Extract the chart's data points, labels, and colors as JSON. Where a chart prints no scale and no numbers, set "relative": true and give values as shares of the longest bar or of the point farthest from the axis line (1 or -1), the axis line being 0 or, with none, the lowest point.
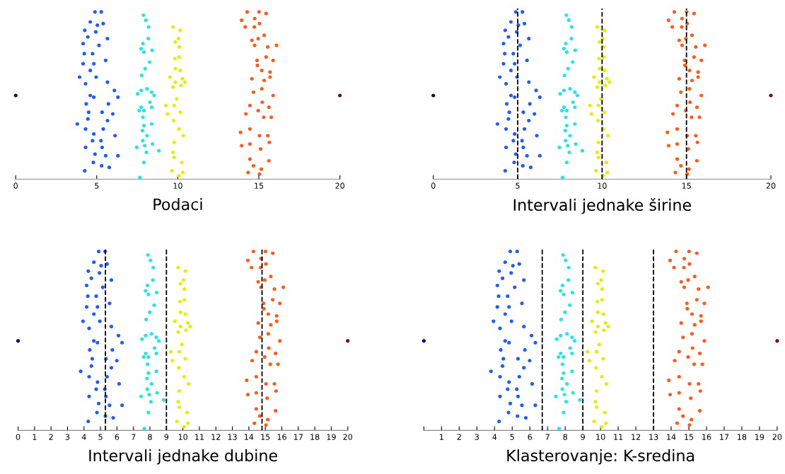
{
  "chart_data": [
    {
      "type": "scatter",
      "xlabel": "Podaci",
      "relative": true,
      "xlim": [
        0,
        20
      ],
      "xticks": [
        0,
        5,
        10,
        15,
        20
      ],
      "tick_labels": "x",
      "marker": "circle",
      "grid": false,
      "series": [
        {
          "color": "#000080",
          "x": [
            0
          ],
          "values": [
            0.5
          ]
        },
        {
          "color": "#800000",
          "x": [
            20
          ],
          "values": [
            0.5
          ]
        },
        {
          "color": "#1f5cff",
          "x": [
            4.89,
            5.28,
            4.6,
            5.04,
            4.26,
            4.94,
            5.4,
            4.45,
            5.66,
            4.16,
            5.14,
            4.23,
            4.74,
            5.55,
            4.16,
            4.82,
            4.6,
            3.94,
            4.96,
            5.66,
            4.31,
            6.09,
            6.31,
            4.6,
            4.82,
            4.35,
            5.72,
            4.5,
            5.33,
            5.99,
            3.8,
            4.45,
            5.66,
            4.31,
            5.4,
            4.82,
            6.13,
            4.74,
            5.26,
            4.31,
            5.33,
            4.89,
            5.55,
            6.31,
            4.79,
            5.3,
            5.77,
            4.26
          ],
          "values": [
            1.0,
            1.0,
            0.94,
            0.92,
            0.89,
            0.88,
            0.93,
            0.85,
            0.84,
            0.81,
            0.8,
            0.75,
            0.75,
            0.71,
            0.69,
            0.69,
            0.65,
            0.61,
            0.61,
            0.58,
            0.57,
            0.53,
            0.49,
            0.5,
            0.49,
            0.45,
            0.45,
            0.4,
            0.4,
            0.39,
            0.33,
            0.36,
            0.35,
            0.3,
            0.3,
            0.27,
            0.26,
            0.23,
            0.23,
            0.19,
            0.19,
            0.15,
            0.14,
            0.14,
            0.1,
            0.08,
            0.07,
            0.05
          ]
        },
        {
          "color": "#22e6e6",
          "x": [
            7.88,
            8.03,
            8.2,
            8.18,
            7.85,
            7.74,
            8.41,
            7.91,
            8.26,
            7.99,
            7.77,
            7.74,
            8.1,
            8.39,
            7.52,
            8.54,
            8.28,
            7.74,
            8.39,
            7.62,
            7.91,
            7.85,
            7.91,
            8.39,
            7.82,
            8.1,
            7.84,
            7.47,
            7.96,
            8.44,
            8.83,
            8.06,
            7.91,
            7.66
          ],
          "values": [
            0.98,
            0.95,
            0.91,
            0.84,
            0.81,
            0.78,
            0.77,
            0.76,
            0.7,
            0.66,
            0.62,
            0.53,
            0.54,
            0.52,
            0.51,
            0.5,
            0.46,
            0.43,
            0.43,
            0.41,
            0.41,
            0.37,
            0.32,
            0.33,
            0.29,
            0.26,
            0.23,
            0.19,
            0.2,
            0.21,
            0.17,
            0.16,
            0.1,
            0.01
          ]
        },
        {
          "color": "#e6ee00",
          "x": [
            9.71,
            10.15,
            10.04,
            9.85,
            10.09,
            9.82,
            10.09,
            9.85,
            10.15,
            9.52,
            10.29,
            10.44,
            9.85,
            10.19,
            9.71,
            9.93,
            9.78,
            9.27,
            10.15,
            9.37,
            9.75,
            10.07,
            10.34,
            9.78,
            9.71,
            9.78,
            10.25,
            9.64,
            10.31,
            10.07
          ],
          "values": [
            0.91,
            0.89,
            0.84,
            0.82,
            0.79,
            0.72,
            0.73,
            0.66,
            0.65,
            0.61,
            0.6,
            0.58,
            0.58,
            0.56,
            0.55,
            0.48,
            0.44,
            0.44,
            0.4,
            0.39,
            0.35,
            0.3,
            0.26,
            0.22,
            0.16,
            0.13,
            0.1,
            0.05,
            0.04,
            0.02
          ]
        },
        {
          "color": "#ff5a1a",
          "x": [
            14.28,
            15.01,
            15.45,
            13.94,
            14.74,
            15.04,
            14.16,
            14.72,
            15.33,
            14.57,
            14.96,
            14.74,
            16.09,
            15.55,
            15.45,
            15.88,
            14.89,
            14.91,
            15.18,
            15.69,
            14.57,
            15.33,
            15.69,
            14.67,
            15.18,
            15.88,
            15.21,
            14.45,
            15.62,
            14.2,
            14.96,
            15.3,
            15.77,
            14.45,
            13.87,
            15.04,
            15.55,
            13.94,
            14.45,
            15.11,
            15.65,
            14.45,
            15.62,
            14.67,
            15.15,
            14.34,
            15.04
          ],
          "values": [
            1.0,
            1.0,
            0.99,
            0.95,
            0.96,
            0.93,
            0.91,
            0.91,
            0.86,
            0.83,
            0.84,
            0.8,
            0.8,
            0.79,
            0.73,
            0.71,
            0.71,
            0.68,
            0.65,
            0.64,
            0.6,
            0.59,
            0.61,
            0.52,
            0.54,
            0.5,
            0.46,
            0.44,
            0.43,
            0.39,
            0.41,
            0.37,
            0.37,
            0.3,
            0.28,
            0.26,
            0.26,
            0.2,
            0.21,
            0.18,
            0.22,
            0.12,
            0.11,
            0.08,
            0.06,
            0.04,
            0.03
          ]
        }
      ]
    },
    {
      "type": "scatter",
      "xlabel": "Intervali jednake širine",
      "relative": true,
      "xlim": [
        0,
        20
      ],
      "xticks": [
        0,
        5,
        10,
        15,
        20
      ],
      "tick_labels": "x",
      "marker": "circle",
      "grid": false,
      "ref_lines": [
        {
          "axis": "x",
          "value": 5,
          "color": "#000000",
          "line_style": "dashed"
        },
        {
          "axis": "x",
          "value": 10,
          "color": "#000000",
          "line_style": "dashed"
        },
        {
          "axis": "x",
          "value": 15,
          "color": "#000000",
          "line_style": "dashed"
        }
      ],
      "series": [
        {
          "color": "#000080",
          "x": [
            0
          ],
          "values": [
            0.5
          ]
        },
        {
          "color": "#800000",
          "x": [
            20
          ],
          "values": [
            0.5
          ]
        },
        {
          "color": "#1f5cff",
          "x": [
            4.89,
            5.28,
            4.6,
            5.04,
            4.26,
            4.94,
            5.4,
            4.45,
            5.66,
            4.16,
            5.14,
            4.23,
            4.74,
            5.55,
            4.16,
            4.82,
            4.6,
            3.94,
            4.96,
            5.66,
            4.31,
            6.09,
            6.31,
            4.6,
            4.82,
            4.35,
            5.72,
            4.5,
            5.33,
            5.99,
            3.8,
            4.45,
            5.66,
            4.31,
            5.4,
            4.82,
            6.13,
            4.74,
            5.26,
            4.31,
            5.33,
            4.89,
            5.55,
            6.31,
            4.79,
            5.3,
            5.77,
            4.26
          ],
          "values": [
            1.0,
            1.0,
            0.94,
            0.92,
            0.89,
            0.88,
            0.93,
            0.85,
            0.84,
            0.81,
            0.8,
            0.75,
            0.75,
            0.71,
            0.69,
            0.69,
            0.65,
            0.61,
            0.61,
            0.58,
            0.57,
            0.53,
            0.49,
            0.5,
            0.49,
            0.45,
            0.45,
            0.4,
            0.4,
            0.39,
            0.33,
            0.36,
            0.35,
            0.3,
            0.3,
            0.27,
            0.26,
            0.23,
            0.23,
            0.19,
            0.19,
            0.15,
            0.14,
            0.14,
            0.1,
            0.08,
            0.07,
            0.05
          ]
        },
        {
          "color": "#22e6e6",
          "x": [
            7.88,
            8.03,
            8.2,
            8.18,
            7.85,
            7.74,
            8.41,
            7.91,
            8.26,
            7.99,
            7.77,
            7.74,
            8.1,
            8.39,
            7.52,
            8.54,
            8.28,
            7.74,
            8.39,
            7.62,
            7.91,
            7.85,
            7.91,
            8.39,
            7.82,
            8.1,
            7.84,
            7.47,
            7.96,
            8.44,
            8.83,
            8.06,
            7.91,
            7.66
          ],
          "values": [
            0.98,
            0.95,
            0.91,
            0.84,
            0.81,
            0.78,
            0.77,
            0.76,
            0.7,
            0.66,
            0.62,
            0.53,
            0.54,
            0.52,
            0.51,
            0.5,
            0.46,
            0.43,
            0.43,
            0.41,
            0.41,
            0.37,
            0.32,
            0.33,
            0.29,
            0.26,
            0.23,
            0.19,
            0.2,
            0.21,
            0.17,
            0.16,
            0.1,
            0.01
          ]
        },
        {
          "color": "#e6ee00",
          "x": [
            9.71,
            10.15,
            10.04,
            9.85,
            10.09,
            9.82,
            10.09,
            9.85,
            10.15,
            9.52,
            10.29,
            10.44,
            9.85,
            10.19,
            9.71,
            9.93,
            9.78,
            9.27,
            10.15,
            9.37,
            9.75,
            10.07,
            10.34,
            9.78,
            9.71,
            9.78,
            10.25,
            9.64,
            10.31,
            10.07
          ],
          "values": [
            0.91,
            0.89,
            0.84,
            0.82,
            0.79,
            0.72,
            0.73,
            0.66,
            0.65,
            0.61,
            0.6,
            0.58,
            0.58,
            0.56,
            0.55,
            0.48,
            0.44,
            0.44,
            0.4,
            0.39,
            0.35,
            0.3,
            0.26,
            0.22,
            0.16,
            0.13,
            0.1,
            0.05,
            0.04,
            0.02
          ]
        },
        {
          "color": "#ff5a1a",
          "x": [
            14.28,
            15.01,
            15.45,
            13.94,
            14.74,
            15.04,
            14.16,
            14.72,
            15.33,
            14.57,
            14.96,
            14.74,
            16.09,
            15.55,
            15.45,
            15.88,
            14.89,
            14.91,
            15.18,
            15.69,
            14.57,
            15.33,
            15.69,
            14.67,
            15.18,
            15.88,
            15.21,
            14.45,
            15.62,
            14.2,
            14.96,
            15.3,
            15.77,
            14.45,
            13.87,
            15.04,
            15.55,
            13.94,
            14.45,
            15.11,
            15.65,
            14.45,
            15.62,
            14.67,
            15.15,
            14.34,
            15.04
          ],
          "values": [
            1.0,
            1.0,
            0.99,
            0.95,
            0.96,
            0.93,
            0.91,
            0.91,
            0.86,
            0.83,
            0.84,
            0.8,
            0.8,
            0.79,
            0.73,
            0.71,
            0.71,
            0.68,
            0.65,
            0.64,
            0.6,
            0.59,
            0.61,
            0.52,
            0.54,
            0.5,
            0.46,
            0.44,
            0.43,
            0.39,
            0.41,
            0.37,
            0.37,
            0.3,
            0.28,
            0.26,
            0.26,
            0.2,
            0.21,
            0.18,
            0.22,
            0.12,
            0.11,
            0.08,
            0.06,
            0.04,
            0.03
          ]
        }
      ]
    },
    {
      "type": "scatter",
      "xlabel": "Intervali jednake dubine",
      "relative": true,
      "xlim": [
        0,
        20
      ],
      "xticks": [
        0,
        1,
        2,
        3,
        4,
        5,
        6,
        7,
        8,
        9,
        10,
        11,
        12,
        13,
        14,
        15,
        16,
        17,
        18,
        19,
        20
      ],
      "tick_labels": "x",
      "marker": "circle",
      "grid": false,
      "ref_lines": [
        {
          "axis": "x",
          "value": 5.3,
          "color": "#000000",
          "line_style": "dashed"
        },
        {
          "axis": "x",
          "value": 9.0,
          "color": "#000000",
          "line_style": "dashed"
        },
        {
          "axis": "x",
          "value": 14.8,
          "color": "#000000",
          "line_style": "dashed"
        }
      ],
      "series": [
        {
          "color": "#000080",
          "x": [
            0
          ],
          "values": [
            0.5
          ]
        },
        {
          "color": "#800000",
          "x": [
            20
          ],
          "values": [
            0.5
          ]
        },
        {
          "color": "#1f5cff",
          "x": [
            4.89,
            5.28,
            4.6,
            5.04,
            4.26,
            4.94,
            5.4,
            4.45,
            5.66,
            4.16,
            5.14,
            4.23,
            4.74,
            5.55,
            4.16,
            4.82,
            4.6,
            3.94,
            4.96,
            5.66,
            4.31,
            6.09,
            6.31,
            4.6,
            4.82,
            4.35,
            5.72,
            4.5,
            5.33,
            5.99,
            3.8,
            4.45,
            5.66,
            4.31,
            5.4,
            4.82,
            6.13,
            4.74,
            5.26,
            4.31,
            5.33,
            4.89,
            5.55,
            6.31,
            4.79,
            5.3,
            5.77,
            4.26
          ],
          "values": [
            1.0,
            1.0,
            0.94,
            0.92,
            0.89,
            0.88,
            0.93,
            0.85,
            0.84,
            0.81,
            0.8,
            0.75,
            0.75,
            0.71,
            0.69,
            0.69,
            0.65,
            0.61,
            0.61,
            0.58,
            0.57,
            0.53,
            0.49,
            0.5,
            0.49,
            0.45,
            0.45,
            0.4,
            0.4,
            0.39,
            0.33,
            0.36,
            0.35,
            0.3,
            0.3,
            0.27,
            0.26,
            0.23,
            0.23,
            0.19,
            0.19,
            0.15,
            0.14,
            0.14,
            0.1,
            0.08,
            0.07,
            0.05
          ]
        },
        {
          "color": "#22e6e6",
          "x": [
            7.88,
            8.03,
            8.2,
            8.18,
            7.85,
            7.74,
            8.41,
            7.91,
            8.26,
            7.99,
            7.77,
            7.74,
            8.1,
            8.39,
            7.52,
            8.54,
            8.28,
            7.74,
            8.39,
            7.62,
            7.91,
            7.85,
            7.91,
            8.39,
            7.82,
            8.1,
            7.84,
            7.47,
            7.96,
            8.44,
            8.83,
            8.06,
            7.91,
            7.66
          ],
          "values": [
            0.98,
            0.95,
            0.91,
            0.84,
            0.81,
            0.78,
            0.77,
            0.76,
            0.7,
            0.66,
            0.62,
            0.53,
            0.54,
            0.52,
            0.51,
            0.5,
            0.46,
            0.43,
            0.43,
            0.41,
            0.41,
            0.37,
            0.32,
            0.33,
            0.29,
            0.26,
            0.23,
            0.19,
            0.2,
            0.21,
            0.17,
            0.16,
            0.1,
            0.01
          ]
        },
        {
          "color": "#e6ee00",
          "x": [
            9.71,
            10.15,
            10.04,
            9.85,
            10.09,
            9.82,
            10.09,
            9.85,
            10.15,
            9.52,
            10.29,
            10.44,
            9.85,
            10.19,
            9.71,
            9.93,
            9.78,
            9.27,
            10.15,
            9.37,
            9.75,
            10.07,
            10.34,
            9.78,
            9.71,
            9.78,
            10.25,
            9.64,
            10.31,
            10.07
          ],
          "values": [
            0.91,
            0.89,
            0.84,
            0.82,
            0.79,
            0.72,
            0.73,
            0.66,
            0.65,
            0.61,
            0.6,
            0.58,
            0.58,
            0.56,
            0.55,
            0.48,
            0.44,
            0.44,
            0.4,
            0.39,
            0.35,
            0.3,
            0.26,
            0.22,
            0.16,
            0.13,
            0.1,
            0.05,
            0.04,
            0.02
          ]
        },
        {
          "color": "#ff5a1a",
          "x": [
            14.28,
            15.01,
            15.45,
            13.94,
            14.74,
            15.04,
            14.16,
            14.72,
            15.33,
            14.57,
            14.96,
            14.74,
            16.09,
            15.55,
            15.45,
            15.88,
            14.89,
            14.91,
            15.18,
            15.69,
            14.57,
            15.33,
            15.69,
            14.67,
            15.18,
            15.88,
            15.21,
            14.45,
            15.62,
            14.2,
            14.96,
            15.3,
            15.77,
            14.45,
            13.87,
            15.04,
            15.55,
            13.94,
            14.45,
            15.11,
            15.65,
            14.45,
            15.62,
            14.67,
            15.15,
            14.34,
            15.04
          ],
          "values": [
            1.0,
            1.0,
            0.99,
            0.95,
            0.96,
            0.93,
            0.91,
            0.91,
            0.86,
            0.83,
            0.84,
            0.8,
            0.8,
            0.79,
            0.73,
            0.71,
            0.71,
            0.68,
            0.65,
            0.64,
            0.6,
            0.59,
            0.61,
            0.52,
            0.54,
            0.5,
            0.46,
            0.44,
            0.43,
            0.39,
            0.41,
            0.37,
            0.37,
            0.3,
            0.28,
            0.26,
            0.26,
            0.2,
            0.21,
            0.18,
            0.22,
            0.12,
            0.11,
            0.08,
            0.06,
            0.04,
            0.03
          ]
        }
      ]
    },
    {
      "type": "scatter",
      "xlabel": "Klasterovanje: K-sredina",
      "relative": true,
      "xlim": [
        0,
        20
      ],
      "xticks": [
        {
          "value": 0,
          "label": null
        },
        1,
        2,
        3,
        4,
        5,
        6,
        7,
        8,
        9,
        10,
        11,
        12,
        13,
        14,
        15,
        16,
        17,
        18,
        19,
        20
      ],
      "tick_labels": "x",
      "marker": "circle",
      "grid": false,
      "ref_lines": [
        {
          "axis": "x",
          "value": 6.7,
          "color": "#000000",
          "line_style": "dashed"
        },
        {
          "axis": "x",
          "value": 9.0,
          "color": "#000000",
          "line_style": "dashed"
        },
        {
          "axis": "x",
          "value": 13.0,
          "color": "#000000",
          "line_style": "dashed"
        }
      ],
      "series": [
        {
          "color": "#000080",
          "x": [
            0
          ],
          "values": [
            0.5
          ]
        },
        {
          "color": "#800000",
          "x": [
            20
          ],
          "values": [
            0.5
          ]
        },
        {
          "color": "#1f5cff",
          "x": [
            4.89,
            5.28,
            4.6,
            5.04,
            4.26,
            4.94,
            5.4,
            4.45,
            5.66,
            4.16,
            5.14,
            4.23,
            4.74,
            5.55,
            4.16,
            4.82,
            4.6,
            3.94,
            4.96,
            5.66,
            4.31,
            6.09,
            6.31,
            4.6,
            4.82,
            4.35,
            5.72,
            4.5,
            5.33,
            5.99,
            3.8,
            4.45,
            5.66,
            4.31,
            5.4,
            4.82,
            6.13,
            4.74,
            5.26,
            4.31,
            5.33,
            4.89,
            5.55,
            6.31,
            4.79,
            5.3,
            5.77,
            4.26
          ],
          "values": [
            1.0,
            1.0,
            0.94,
            0.92,
            0.89,
            0.88,
            0.93,
            0.85,
            0.84,
            0.81,
            0.8,
            0.75,
            0.75,
            0.71,
            0.69,
            0.69,
            0.65,
            0.61,
            0.61,
            0.58,
            0.57,
            0.53,
            0.49,
            0.5,
            0.49,
            0.45,
            0.45,
            0.4,
            0.4,
            0.39,
            0.33,
            0.36,
            0.35,
            0.3,
            0.3,
            0.27,
            0.26,
            0.23,
            0.23,
            0.19,
            0.19,
            0.15,
            0.14,
            0.14,
            0.1,
            0.08,
            0.07,
            0.05
          ]
        },
        {
          "color": "#22e6e6",
          "x": [
            7.88,
            8.03,
            8.2,
            8.18,
            7.85,
            7.74,
            8.41,
            7.91,
            8.26,
            7.99,
            7.77,
            7.74,
            8.1,
            8.39,
            7.52,
            8.54,
            8.28,
            7.74,
            8.39,
            7.62,
            7.91,
            7.85,
            7.91,
            8.39,
            7.82,
            8.1,
            7.84,
            7.47,
            7.96,
            8.44,
            8.83,
            8.06,
            7.91,
            7.66
          ],
          "values": [
            0.98,
            0.95,
            0.91,
            0.84,
            0.81,
            0.78,
            0.77,
            0.76,
            0.7,
            0.66,
            0.62,
            0.53,
            0.54,
            0.52,
            0.51,
            0.5,
            0.46,
            0.43,
            0.43,
            0.41,
            0.41,
            0.37,
            0.32,
            0.33,
            0.29,
            0.26,
            0.23,
            0.19,
            0.2,
            0.21,
            0.17,
            0.16,
            0.1,
            0.01
          ]
        },
        {
          "color": "#e6ee00",
          "x": [
            9.71,
            10.15,
            10.04,
            9.85,
            10.09,
            9.82,
            10.09,
            9.85,
            10.15,
            9.52,
            10.29,
            10.44,
            9.85,
            10.19,
            9.71,
            9.93,
            9.78,
            9.27,
            10.15,
            9.37,
            9.75,
            10.07,
            10.34,
            9.78,
            9.71,
            9.78,
            10.25,
            9.64,
            10.31,
            10.07
          ],
          "values": [
            0.91,
            0.89,
            0.84,
            0.82,
            0.79,
            0.72,
            0.73,
            0.66,
            0.65,
            0.61,
            0.6,
            0.58,
            0.58,
            0.56,
            0.55,
            0.48,
            0.44,
            0.44,
            0.4,
            0.39,
            0.35,
            0.3,
            0.26,
            0.22,
            0.16,
            0.13,
            0.1,
            0.05,
            0.04,
            0.02
          ]
        },
        {
          "color": "#ff5a1a",
          "x": [
            14.28,
            15.01,
            15.45,
            13.94,
            14.74,
            15.04,
            14.16,
            14.72,
            15.33,
            14.57,
            14.96,
            14.74,
            16.09,
            15.55,
            15.45,
            15.88,
            14.89,
            14.91,
            15.18,
            15.69,
            14.57,
            15.33,
            15.69,
            14.67,
            15.18,
            15.88,
            15.21,
            14.45,
            15.62,
            14.2,
            14.96,
            15.3,
            15.77,
            14.45,
            13.87,
            15.04,
            15.55,
            13.94,
            14.45,
            15.11,
            15.65,
            14.45,
            15.62,
            14.67,
            15.15,
            14.34,
            15.04
          ],
          "values": [
            1.0,
            1.0,
            0.99,
            0.95,
            0.96,
            0.93,
            0.91,
            0.91,
            0.86,
            0.83,
            0.84,
            0.8,
            0.8,
            0.79,
            0.73,
            0.71,
            0.71,
            0.68,
            0.65,
            0.64,
            0.6,
            0.59,
            0.61,
            0.52,
            0.54,
            0.5,
            0.46,
            0.44,
            0.43,
            0.39,
            0.41,
            0.37,
            0.37,
            0.3,
            0.28,
            0.26,
            0.26,
            0.2,
            0.21,
            0.18,
            0.22,
            0.12,
            0.11,
            0.08,
            0.06,
            0.04,
            0.03
          ]
        }
      ]
    }
  ]
}
